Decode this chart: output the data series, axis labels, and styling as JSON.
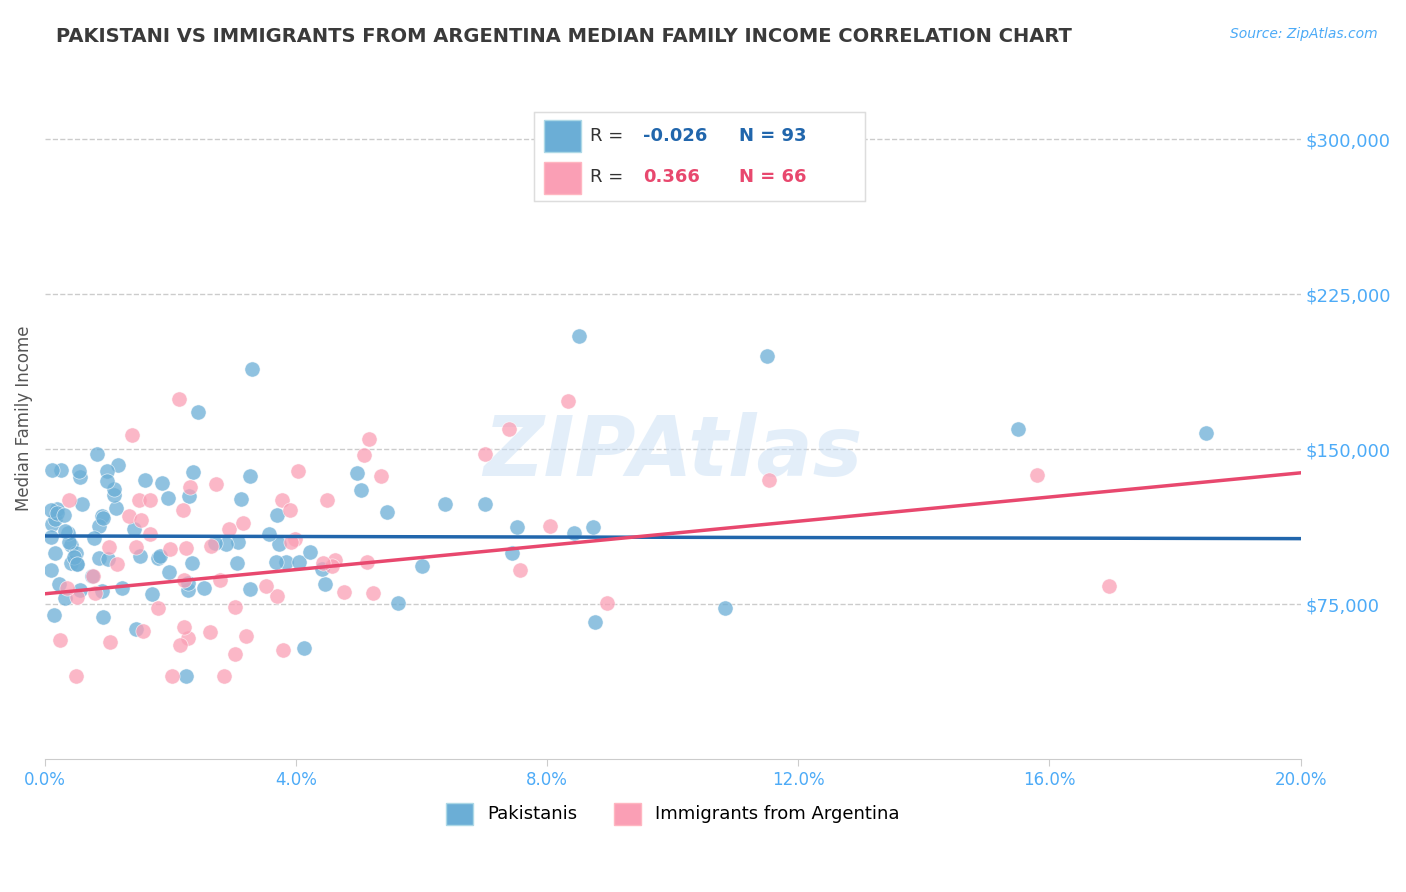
{
  "title": "PAKISTANI VS IMMIGRANTS FROM ARGENTINA MEDIAN FAMILY INCOME CORRELATION CHART",
  "source": "Source: ZipAtlas.com",
  "ylabel": "Median Family Income",
  "ytick_labels": [
    "$75,000",
    "$150,000",
    "$225,000",
    "$300,000"
  ],
  "ytick_values": [
    75000,
    150000,
    225000,
    300000
  ],
  "ylim": [
    0,
    330000
  ],
  "xlim": [
    0.0,
    0.2
  ],
  "blue_R": "-0.026",
  "blue_N": "93",
  "pink_R": "0.366",
  "pink_N": "66",
  "blue_color": "#6baed6",
  "pink_color": "#fa9fb5",
  "blue_line_color": "#2166ac",
  "pink_line_color": "#e8486e",
  "title_color": "#3a3a3a",
  "axis_label_color": "#4dabf7",
  "watermark_color": "#c8dff5",
  "background_color": "#ffffff",
  "grid_color": "#cccccc"
}
